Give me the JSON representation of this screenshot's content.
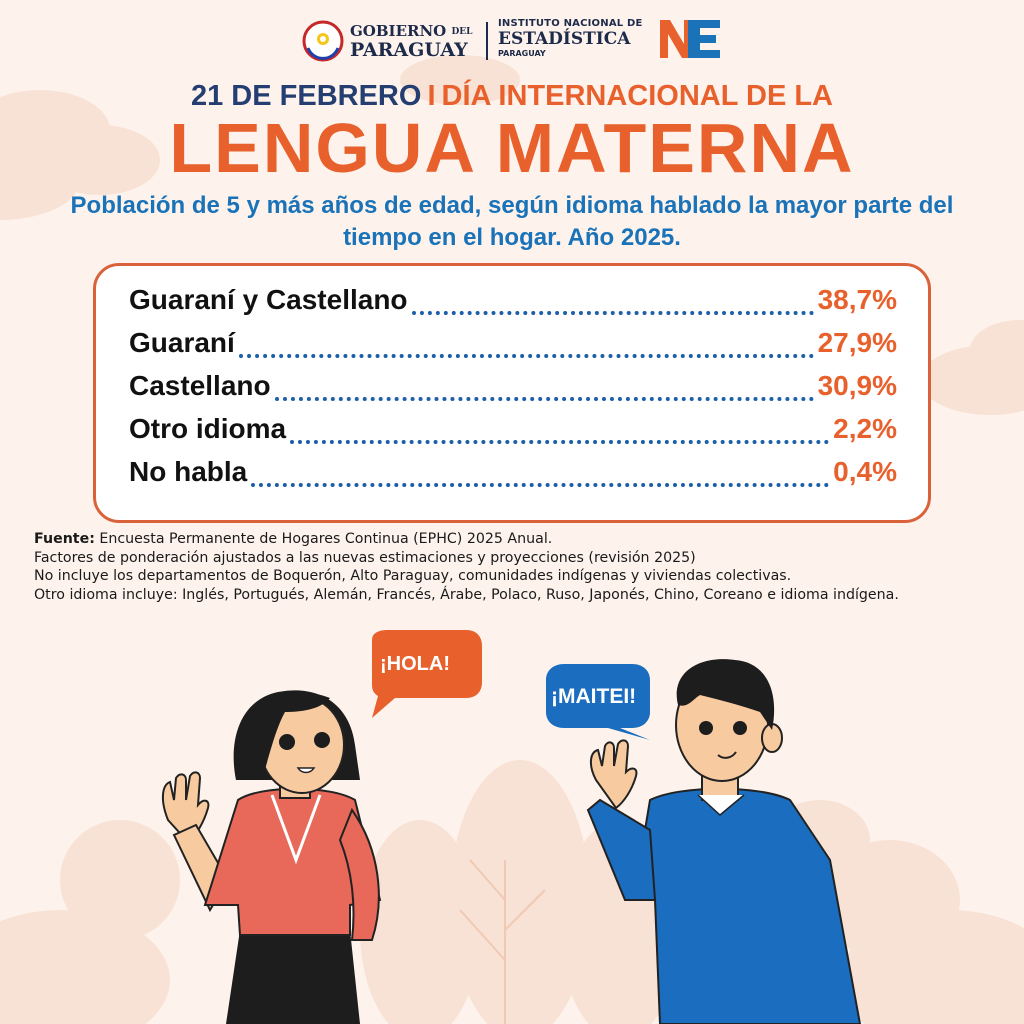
{
  "header": {
    "gov_line1": "GOBIERNO",
    "gov_del": "DEL",
    "gov_line2": "PARAGUAY",
    "ine_line1": "INSTITUTO NACIONAL DE",
    "ine_line2": "ESTADÍSTICA",
    "ine_line3": "PARAGUAY",
    "ne_logo": "NE"
  },
  "title": {
    "date": "21 DE FEBRERO",
    "separator": "I",
    "event": "DÍA INTERNACIONAL DE LA",
    "main": "LENGUA MATERNA"
  },
  "subtitle": "Población de 5 y más años de edad, según idioma hablado la mayor parte del tiempo en el hogar. Año 2025.",
  "stats": [
    {
      "label": "Guaraní y Castellano",
      "value": "38,7%"
    },
    {
      "label": "Guaraní",
      "value": "27,9%"
    },
    {
      "label": "Castellano",
      "value": "30,9%"
    },
    {
      "label": "Otro idioma",
      "value": "2,2%"
    },
    {
      "label": "No habla",
      "value": "0,4%"
    }
  ],
  "notes": {
    "source_label": "Fuente:",
    "source_text": "Encuesta Permanente de Hogares Continua (EPHC) 2025 Anual.",
    "line2": "Factores de ponderación ajustados a las nuevas estimaciones y proyecciones (revisión 2025)",
    "line3": "No incluye los departamentos de Boquerón, Alto Paraguay, comunidades indígenas y viviendas colectivas.",
    "line4": "Otro idioma incluye: Inglés, Portugués, Alemán, Francés, Árabe, Polaco, Ruso, Japonés, Chino, Coreano e idioma indígena."
  },
  "bubbles": {
    "left": "¡HOLA!",
    "right": "¡MAITEI!"
  },
  "colors": {
    "orange": "#e8602c",
    "navy": "#243e72",
    "blue": "#1a73b8",
    "background": "#fdf3ec"
  }
}
